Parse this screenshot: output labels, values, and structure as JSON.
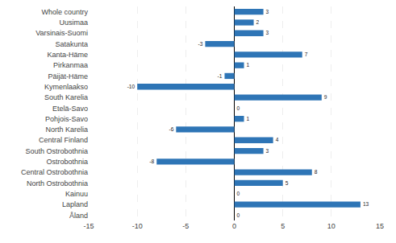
{
  "chart_data": {
    "type": "bar",
    "orientation": "horizontal",
    "categories": [
      "Whole country",
      "Uusimaa",
      "Varsinais-Suomi",
      "Satakunta",
      "Kanta-Häme",
      "Pirkanmaa",
      "Päijät-Häme",
      "Kymenlaakso",
      "South Karelia",
      "Etelä-Savo",
      "Pohjois-Savo",
      "North Karelia",
      "Central Finland",
      "South Ostrobothnia",
      "Ostrobothnia",
      "Central Ostrobothnia",
      "North Ostrobothnia",
      "Kainuu",
      "Lapland",
      "Åland"
    ],
    "values": [
      3,
      2,
      3,
      -3,
      7,
      1,
      -1,
      -10,
      9,
      0,
      1,
      -6,
      4,
      3,
      -8,
      8,
      5,
      0,
      13,
      0
    ],
    "color": "#2E75B6",
    "xlim": [
      -15,
      15
    ],
    "xticks": [
      -15,
      -10,
      -5,
      0,
      5,
      10,
      15
    ],
    "grid": true,
    "data_labels": true
  }
}
